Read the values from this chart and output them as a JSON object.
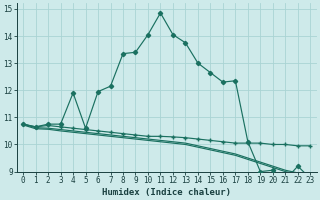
{
  "bg_color": "#ceeaea",
  "grid_color": "#aad4d4",
  "line_color": "#1a7060",
  "xlabel": "Humidex (Indice chaleur)",
  "xlim": [
    -0.5,
    23.5
  ],
  "ylim": [
    9,
    15.2
  ],
  "yticks": [
    9,
    10,
    11,
    12,
    13,
    14,
    15
  ],
  "xticks": [
    0,
    1,
    2,
    3,
    4,
    5,
    6,
    7,
    8,
    9,
    10,
    11,
    12,
    13,
    14,
    15,
    16,
    17,
    18,
    19,
    20,
    21,
    22,
    23
  ],
  "line1_x": [
    0,
    1,
    2,
    3,
    4,
    5,
    6,
    7,
    8,
    9,
    10,
    11,
    12,
    13,
    14,
    15,
    16,
    17,
    18,
    19,
    20,
    21,
    22,
    23
  ],
  "line1_y": [
    10.75,
    10.65,
    10.75,
    10.75,
    11.9,
    10.6,
    11.95,
    12.15,
    13.35,
    13.4,
    14.05,
    14.85,
    14.05,
    13.75,
    13.0,
    12.65,
    12.3,
    12.35,
    10.1,
    9.0,
    9.05,
    8.7,
    9.2,
    8.75
  ],
  "line2_x": [
    0,
    1,
    2,
    3,
    4,
    5,
    6,
    7,
    8,
    9,
    10,
    11,
    12,
    13,
    14,
    15,
    16,
    17,
    18,
    19,
    20,
    21,
    22,
    23
  ],
  "line2_y": [
    10.75,
    10.65,
    10.7,
    10.65,
    10.6,
    10.55,
    10.5,
    10.45,
    10.4,
    10.35,
    10.3,
    10.3,
    10.28,
    10.25,
    10.2,
    10.15,
    10.1,
    10.05,
    10.05,
    10.05,
    10.0,
    10.0,
    9.95,
    9.95
  ],
  "line3_x": [
    0,
    1,
    2,
    3,
    4,
    5,
    6,
    7,
    8,
    9,
    10,
    11,
    12,
    13,
    14,
    15,
    16,
    17,
    18,
    19,
    20,
    21,
    22,
    23
  ],
  "line3_y": [
    10.75,
    10.62,
    10.6,
    10.55,
    10.5,
    10.45,
    10.4,
    10.35,
    10.3,
    10.25,
    10.2,
    10.15,
    10.1,
    10.05,
    9.95,
    9.85,
    9.75,
    9.65,
    9.5,
    9.35,
    9.2,
    9.05,
    8.95,
    8.82
  ],
  "line4_x": [
    0,
    1,
    2,
    3,
    4,
    5,
    6,
    7,
    8,
    9,
    10,
    11,
    12,
    13,
    14,
    15,
    16,
    17,
    18,
    19,
    20,
    21,
    22,
    23
  ],
  "line4_y": [
    10.72,
    10.58,
    10.56,
    10.5,
    10.45,
    10.4,
    10.35,
    10.3,
    10.25,
    10.2,
    10.15,
    10.1,
    10.05,
    10.0,
    9.9,
    9.8,
    9.7,
    9.6,
    9.45,
    9.3,
    9.15,
    9.0,
    8.9,
    8.78
  ]
}
